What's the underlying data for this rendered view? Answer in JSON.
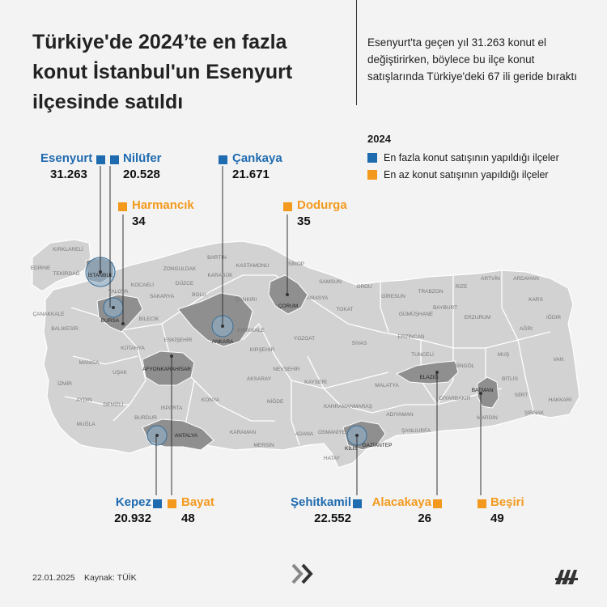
{
  "title": "Türkiye'de 2024’te en fazla konut İstanbul'un Esenyurt ilçesinde satıldı",
  "description": "Esenyurt'ta geçen yıl 31.263 konut el değiştirirken, böylece bu ilçe konut satışlarında Türkiye'deki 67 ili geride bıraktı",
  "legend": {
    "year": "2024",
    "items": [
      {
        "label": "En fazla konut satışının yapıldığı ilçeler",
        "color": "#1f6bb0"
      },
      {
        "label": "En az konut satışının yapıldığı ilçeler",
        "color": "#f39a1e"
      }
    ]
  },
  "colors": {
    "most": "#1f6bb0",
    "least": "#f39a1e"
  },
  "districts": [
    {
      "name": "Esenyurt",
      "value": "31.263",
      "category": "most"
    },
    {
      "name": "Nilüfer",
      "value": "20.528",
      "category": "most"
    },
    {
      "name": "Harmancık",
      "value": "34",
      "category": "least"
    },
    {
      "name": "Çankaya",
      "value": "21.671",
      "category": "most"
    },
    {
      "name": "Dodurga",
      "value": "35",
      "category": "least"
    },
    {
      "name": "Kepez",
      "value": "20.932",
      "category": "most"
    },
    {
      "name": "Bayat",
      "value": "48",
      "category": "least"
    },
    {
      "name": "Şehitkamil",
      "value": "22.552",
      "category": "most"
    },
    {
      "name": "Alacakaya",
      "value": "26",
      "category": "least"
    },
    {
      "name": "Beşiri",
      "value": "49",
      "category": "least"
    }
  ],
  "provinces": [
    "KIRKLARELİ",
    "EDİRNE",
    "TEKİRDAĞ",
    "İSTANBUL",
    "ÇANAKKALE",
    "BALIKESİR",
    "YALOVA",
    "KOCAELİ",
    "SAKARYA",
    "BURSA",
    "BİLECİK",
    "DÜZCE",
    "ZONGULDAK",
    "BARTIN",
    "KASTAMONU",
    "KARABÜK",
    "BOLU",
    "SİNOP",
    "SAMSUN",
    "ORDU",
    "GİRESUN",
    "TRABZON",
    "RİZE",
    "ARTVİN",
    "ARDAHAN",
    "KARS",
    "IĞDIR",
    "AĞRI",
    "ERZURUM",
    "BAYBURT",
    "GÜMÜŞHANE",
    "ERZİNCAN",
    "TUNCELİ",
    "BİNGÖL",
    "MUŞ",
    "VAN",
    "BİTLİS",
    "SİİRT",
    "HAKKARİ",
    "ŞIRNAK",
    "BATMAN",
    "MARDİN",
    "DİYARBAKIR",
    "ELAZIĞ",
    "MALATYA",
    "ADIYAMAN",
    "ŞANLIURFA",
    "GAZİANTEP",
    "KİLİS",
    "OSMANİYE",
    "HATAY",
    "ADANA",
    "MERSİN",
    "KARAMAN",
    "ANTALYA",
    "BURDUR",
    "ISPARTA",
    "MUĞLA",
    "DENİZLİ",
    "AYDIN",
    "İZMİR",
    "MANİSA",
    "UŞAK",
    "KÜTAHYA",
    "ESKİŞEHİR",
    "AFYONKARAHİSAR",
    "KONYA",
    "AKSARAY",
    "NİĞDE",
    "NEVŞEHİR",
    "KAYSERİ",
    "KIRŞEHİR",
    "KIRIKKALE",
    "ANKARA",
    "ÇANKIRI",
    "ÇORUM",
    "AMASYA",
    "TOKAT",
    "YOZGAT",
    "SİVAS",
    "KAHRAMANMARAŞ"
  ],
  "footer": {
    "date": "22.01.2025",
    "source": "Kaynak: TÜİK"
  }
}
